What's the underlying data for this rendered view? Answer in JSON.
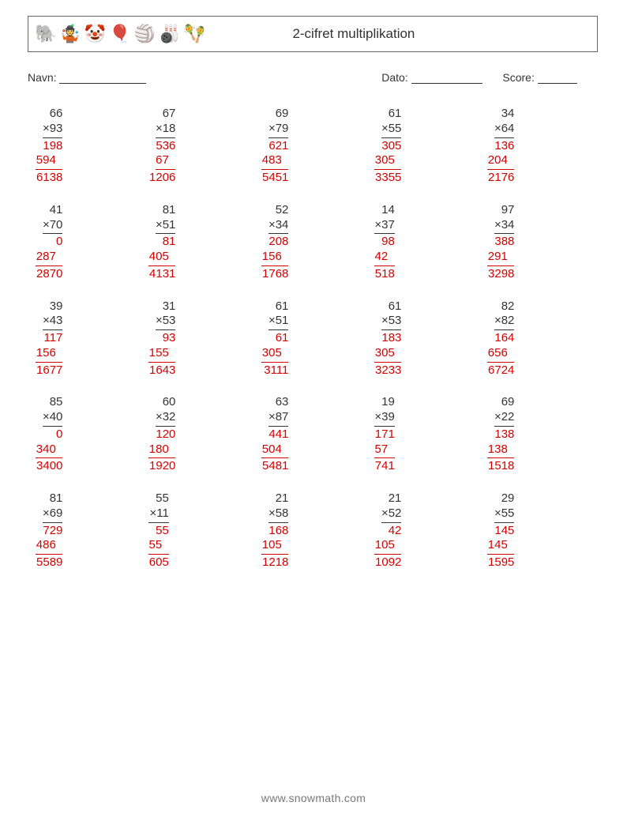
{
  "header": {
    "title": "2-cifret multiplikation"
  },
  "meta": {
    "name_label": "Navn:",
    "date_label": "Dato:",
    "score_label": "Score:"
  },
  "style": {
    "text_color": "#333333",
    "answer_color": "#d40000",
    "border_color": "#666666",
    "font_size_problem": 15,
    "font_size_title": 17,
    "font_size_meta": 14,
    "grid_cols": 5,
    "grid_rows": 5
  },
  "icons": [
    {
      "name": "elephant",
      "emoji": "🐘"
    },
    {
      "name": "juggle-hand",
      "emoji": "🤹"
    },
    {
      "name": "clown",
      "emoji": "🤡"
    },
    {
      "name": "balloon",
      "emoji": "🎈"
    },
    {
      "name": "beachball",
      "emoji": "🏐"
    },
    {
      "name": "pins",
      "emoji": "🎳"
    },
    {
      "name": "maracas",
      "emoji": "🪇"
    }
  ],
  "problems": [
    {
      "a": 66,
      "b": 93,
      "p1": 198,
      "p2": 594,
      "ans": 6138
    },
    {
      "a": 67,
      "b": 18,
      "p1": 536,
      "p2": 67,
      "ans": 1206
    },
    {
      "a": 69,
      "b": 79,
      "p1": 621,
      "p2": 483,
      "ans": 5451
    },
    {
      "a": 61,
      "b": 55,
      "p1": 305,
      "p2": 305,
      "ans": 3355
    },
    {
      "a": 34,
      "b": 64,
      "p1": 136,
      "p2": 204,
      "ans": 2176
    },
    {
      "a": 41,
      "b": 70,
      "p1": 0,
      "p2": 287,
      "ans": 2870
    },
    {
      "a": 81,
      "b": 51,
      "p1": 81,
      "p2": 405,
      "ans": 4131
    },
    {
      "a": 52,
      "b": 34,
      "p1": 208,
      "p2": 156,
      "ans": 1768
    },
    {
      "a": 14,
      "b": 37,
      "p1": 98,
      "p2": 42,
      "ans": 518
    },
    {
      "a": 97,
      "b": 34,
      "p1": 388,
      "p2": 291,
      "ans": 3298
    },
    {
      "a": 39,
      "b": 43,
      "p1": 117,
      "p2": 156,
      "ans": 1677
    },
    {
      "a": 31,
      "b": 53,
      "p1": 93,
      "p2": 155,
      "ans": 1643
    },
    {
      "a": 61,
      "b": 51,
      "p1": 61,
      "p2": 305,
      "ans": 3111
    },
    {
      "a": 61,
      "b": 53,
      "p1": 183,
      "p2": 305,
      "ans": 3233
    },
    {
      "a": 82,
      "b": 82,
      "p1": 164,
      "p2": 656,
      "ans": 6724
    },
    {
      "a": 85,
      "b": 40,
      "p1": 0,
      "p2": 340,
      "ans": 3400
    },
    {
      "a": 60,
      "b": 32,
      "p1": 120,
      "p2": 180,
      "ans": 1920
    },
    {
      "a": 63,
      "b": 87,
      "p1": 441,
      "p2": 504,
      "ans": 5481
    },
    {
      "a": 19,
      "b": 39,
      "p1": 171,
      "p2": 57,
      "ans": 741
    },
    {
      "a": 69,
      "b": 22,
      "p1": 138,
      "p2": 138,
      "ans": 1518
    },
    {
      "a": 81,
      "b": 69,
      "p1": 729,
      "p2": 486,
      "ans": 5589
    },
    {
      "a": 55,
      "b": 11,
      "p1": 55,
      "p2": 55,
      "ans": 605
    },
    {
      "a": 21,
      "b": 58,
      "p1": 168,
      "p2": 105,
      "ans": 1218
    },
    {
      "a": 21,
      "b": 52,
      "p1": 42,
      "p2": 105,
      "ans": 1092
    },
    {
      "a": 29,
      "b": 55,
      "p1": 145,
      "p2": 145,
      "ans": 1595
    }
  ],
  "footer": "www.snowmath.com"
}
